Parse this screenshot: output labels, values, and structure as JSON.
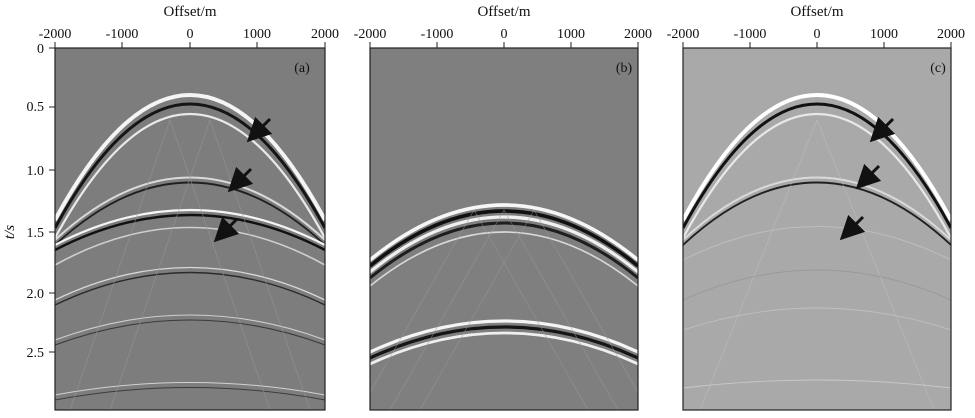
{
  "figure": {
    "x_axis_title": "Offset/m",
    "y_axis_title": "t/s",
    "x_tick_labels": [
      "-2000",
      "-1000",
      "0",
      "1000",
      "2000"
    ],
    "y_tick_labels": [
      "0",
      "0.5",
      "1.0",
      "1.5",
      "2.0",
      "2.5"
    ],
    "x_range": [
      -2000,
      2000
    ],
    "t_range": [
      0,
      3.0
    ],
    "colors": {
      "background_a": "#7d7d7d",
      "background_b": "#7f7f7f",
      "background_c": "#a9a9a9",
      "frame": "#222222",
      "arrow": "#111111"
    },
    "panels": [
      {
        "tag": "(a)",
        "events": [
          {
            "t0": 0.45,
            "type": "reflection"
          },
          {
            "t0": 1.08,
            "type": "reflection"
          },
          {
            "t0": 1.35,
            "type": "reflection"
          },
          {
            "t0": 1.7,
            "type": "reflection"
          },
          {
            "t0": 2.2,
            "type": "weak-reflection"
          },
          {
            "t0": 2.75,
            "type": "weak-reflection"
          }
        ],
        "arrows": [
          "arrow-top",
          "arrow-middle",
          "arrow-lower"
        ]
      },
      {
        "tag": "(b)",
        "events": [
          {
            "t0": 1.25,
            "type": "diffraction-multiple"
          },
          {
            "t0": 2.15,
            "type": "diffraction-multiple"
          }
        ],
        "arrows": []
      },
      {
        "tag": "(c)",
        "events": [
          {
            "t0": 0.45,
            "type": "reflection"
          },
          {
            "t0": 1.08,
            "type": "reflection"
          },
          {
            "t0": 1.35,
            "type": "attenuated-reflection"
          },
          {
            "t0": 2.1,
            "type": "weak-reflection"
          }
        ],
        "arrows": [
          "arrow-top",
          "arrow-middle",
          "arrow-lower"
        ]
      }
    ]
  }
}
